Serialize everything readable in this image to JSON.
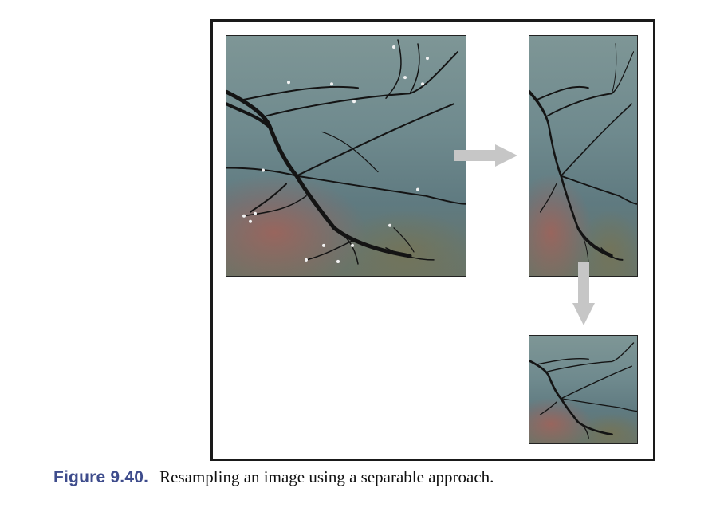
{
  "figure": {
    "label": "Figure 9.40.",
    "caption": "Resampling an image using a separable approach."
  },
  "images": [
    {
      "name": "original",
      "description": "tree branches with water droplets"
    },
    {
      "name": "horizontally-resampled"
    },
    {
      "name": "fully-resampled"
    }
  ],
  "colors": {
    "caption_label": "#3e4c8c",
    "arrow": "#c6c6c6",
    "frame": "#1a1a1a",
    "branch": "#141414",
    "droplet": "#f2f2f2"
  }
}
